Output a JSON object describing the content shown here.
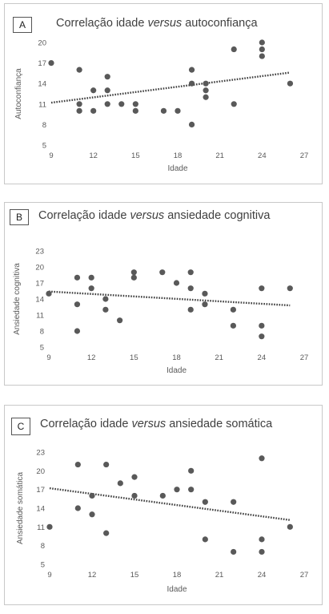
{
  "chart_data": [
    {
      "type": "scatter",
      "panel_letter": "A",
      "title_before": "Correlação idade ",
      "title_italic": "versus",
      "title_after": " autoconfiança",
      "xlabel": "Idade",
      "ylabel": "Autoconfiança",
      "xlim": [
        9,
        27
      ],
      "ylim": [
        5,
        20
      ],
      "xticks": [
        9,
        12,
        15,
        18,
        21,
        24,
        27
      ],
      "yticks": [
        5,
        8,
        11,
        14,
        17,
        20
      ],
      "trendline": {
        "style": "dotted",
        "x": [
          9,
          26
        ],
        "y": [
          11.2,
          15.6
        ]
      },
      "points": [
        {
          "x": 9,
          "y": 17
        },
        {
          "x": 11,
          "y": 16
        },
        {
          "x": 11,
          "y": 11
        },
        {
          "x": 11,
          "y": 10
        },
        {
          "x": 12,
          "y": 13
        },
        {
          "x": 12,
          "y": 10
        },
        {
          "x": 13,
          "y": 15
        },
        {
          "x": 13,
          "y": 13
        },
        {
          "x": 13,
          "y": 11
        },
        {
          "x": 14,
          "y": 11
        },
        {
          "x": 15,
          "y": 11
        },
        {
          "x": 15,
          "y": 10
        },
        {
          "x": 17,
          "y": 10
        },
        {
          "x": 18,
          "y": 10
        },
        {
          "x": 19,
          "y": 16
        },
        {
          "x": 19,
          "y": 14
        },
        {
          "x": 19,
          "y": 8
        },
        {
          "x": 20,
          "y": 14
        },
        {
          "x": 20,
          "y": 13
        },
        {
          "x": 20,
          "y": 12
        },
        {
          "x": 22,
          "y": 19
        },
        {
          "x": 22,
          "y": 11
        },
        {
          "x": 24,
          "y": 20
        },
        {
          "x": 24,
          "y": 19
        },
        {
          "x": 24,
          "y": 18
        },
        {
          "x": 26,
          "y": 14
        }
      ]
    },
    {
      "type": "scatter",
      "panel_letter": "B",
      "title_before": "Correlação idade ",
      "title_italic": "versus",
      "title_after": " ansiedade cognitiva",
      "xlabel": "Idade",
      "ylabel": "Ansiedade cognitiva",
      "xlim": [
        9,
        27
      ],
      "ylim": [
        5,
        23
      ],
      "xticks": [
        9,
        12,
        15,
        18,
        21,
        24,
        27
      ],
      "yticks": [
        5,
        8,
        11,
        14,
        17,
        20,
        23
      ],
      "trendline": {
        "style": "dotted",
        "x": [
          9,
          26
        ],
        "y": [
          15.4,
          12.8
        ]
      },
      "points": [
        {
          "x": 9,
          "y": 15
        },
        {
          "x": 11,
          "y": 18
        },
        {
          "x": 11,
          "y": 13
        },
        {
          "x": 11,
          "y": 8
        },
        {
          "x": 12,
          "y": 18
        },
        {
          "x": 12,
          "y": 16
        },
        {
          "x": 13,
          "y": 14
        },
        {
          "x": 13,
          "y": 12
        },
        {
          "x": 14,
          "y": 10
        },
        {
          "x": 15,
          "y": 19
        },
        {
          "x": 15,
          "y": 18
        },
        {
          "x": 17,
          "y": 19
        },
        {
          "x": 18,
          "y": 17
        },
        {
          "x": 19,
          "y": 19
        },
        {
          "x": 19,
          "y": 16
        },
        {
          "x": 19,
          "y": 12
        },
        {
          "x": 20,
          "y": 15
        },
        {
          "x": 20,
          "y": 13
        },
        {
          "x": 22,
          "y": 12
        },
        {
          "x": 22,
          "y": 9
        },
        {
          "x": 24,
          "y": 16
        },
        {
          "x": 24,
          "y": 9
        },
        {
          "x": 24,
          "y": 7
        },
        {
          "x": 26,
          "y": 16
        }
      ]
    },
    {
      "type": "scatter",
      "panel_letter": "C",
      "title_before": "Correlação idade ",
      "title_italic": "versus",
      "title_after": " ansiedade somática",
      "xlabel": "Idade",
      "ylabel": "Ansiedade somática",
      "xlim": [
        9,
        27
      ],
      "ylim": [
        5,
        23
      ],
      "xticks": [
        9,
        12,
        15,
        18,
        21,
        24,
        27
      ],
      "yticks": [
        5,
        8,
        11,
        14,
        17,
        20,
        23
      ],
      "trendline": {
        "style": "dotted",
        "x": [
          9,
          26
        ],
        "y": [
          17.2,
          12.1
        ]
      },
      "points": [
        {
          "x": 9,
          "y": 11
        },
        {
          "x": 11,
          "y": 21
        },
        {
          "x": 11,
          "y": 14
        },
        {
          "x": 12,
          "y": 16
        },
        {
          "x": 12,
          "y": 13
        },
        {
          "x": 13,
          "y": 21
        },
        {
          "x": 13,
          "y": 10
        },
        {
          "x": 14,
          "y": 18
        },
        {
          "x": 15,
          "y": 19
        },
        {
          "x": 15,
          "y": 16
        },
        {
          "x": 17,
          "y": 16
        },
        {
          "x": 18,
          "y": 17
        },
        {
          "x": 19,
          "y": 20
        },
        {
          "x": 19,
          "y": 17
        },
        {
          "x": 20,
          "y": 15
        },
        {
          "x": 20,
          "y": 9
        },
        {
          "x": 22,
          "y": 15
        },
        {
          "x": 22,
          "y": 7
        },
        {
          "x": 24,
          "y": 22
        },
        {
          "x": 24,
          "y": 9
        },
        {
          "x": 24,
          "y": 7
        },
        {
          "x": 26,
          "y": 11
        }
      ]
    }
  ],
  "colors": {
    "marker": "#595959",
    "trendline": "#404040",
    "text": "#404040",
    "border": "#c8c8c8"
  }
}
